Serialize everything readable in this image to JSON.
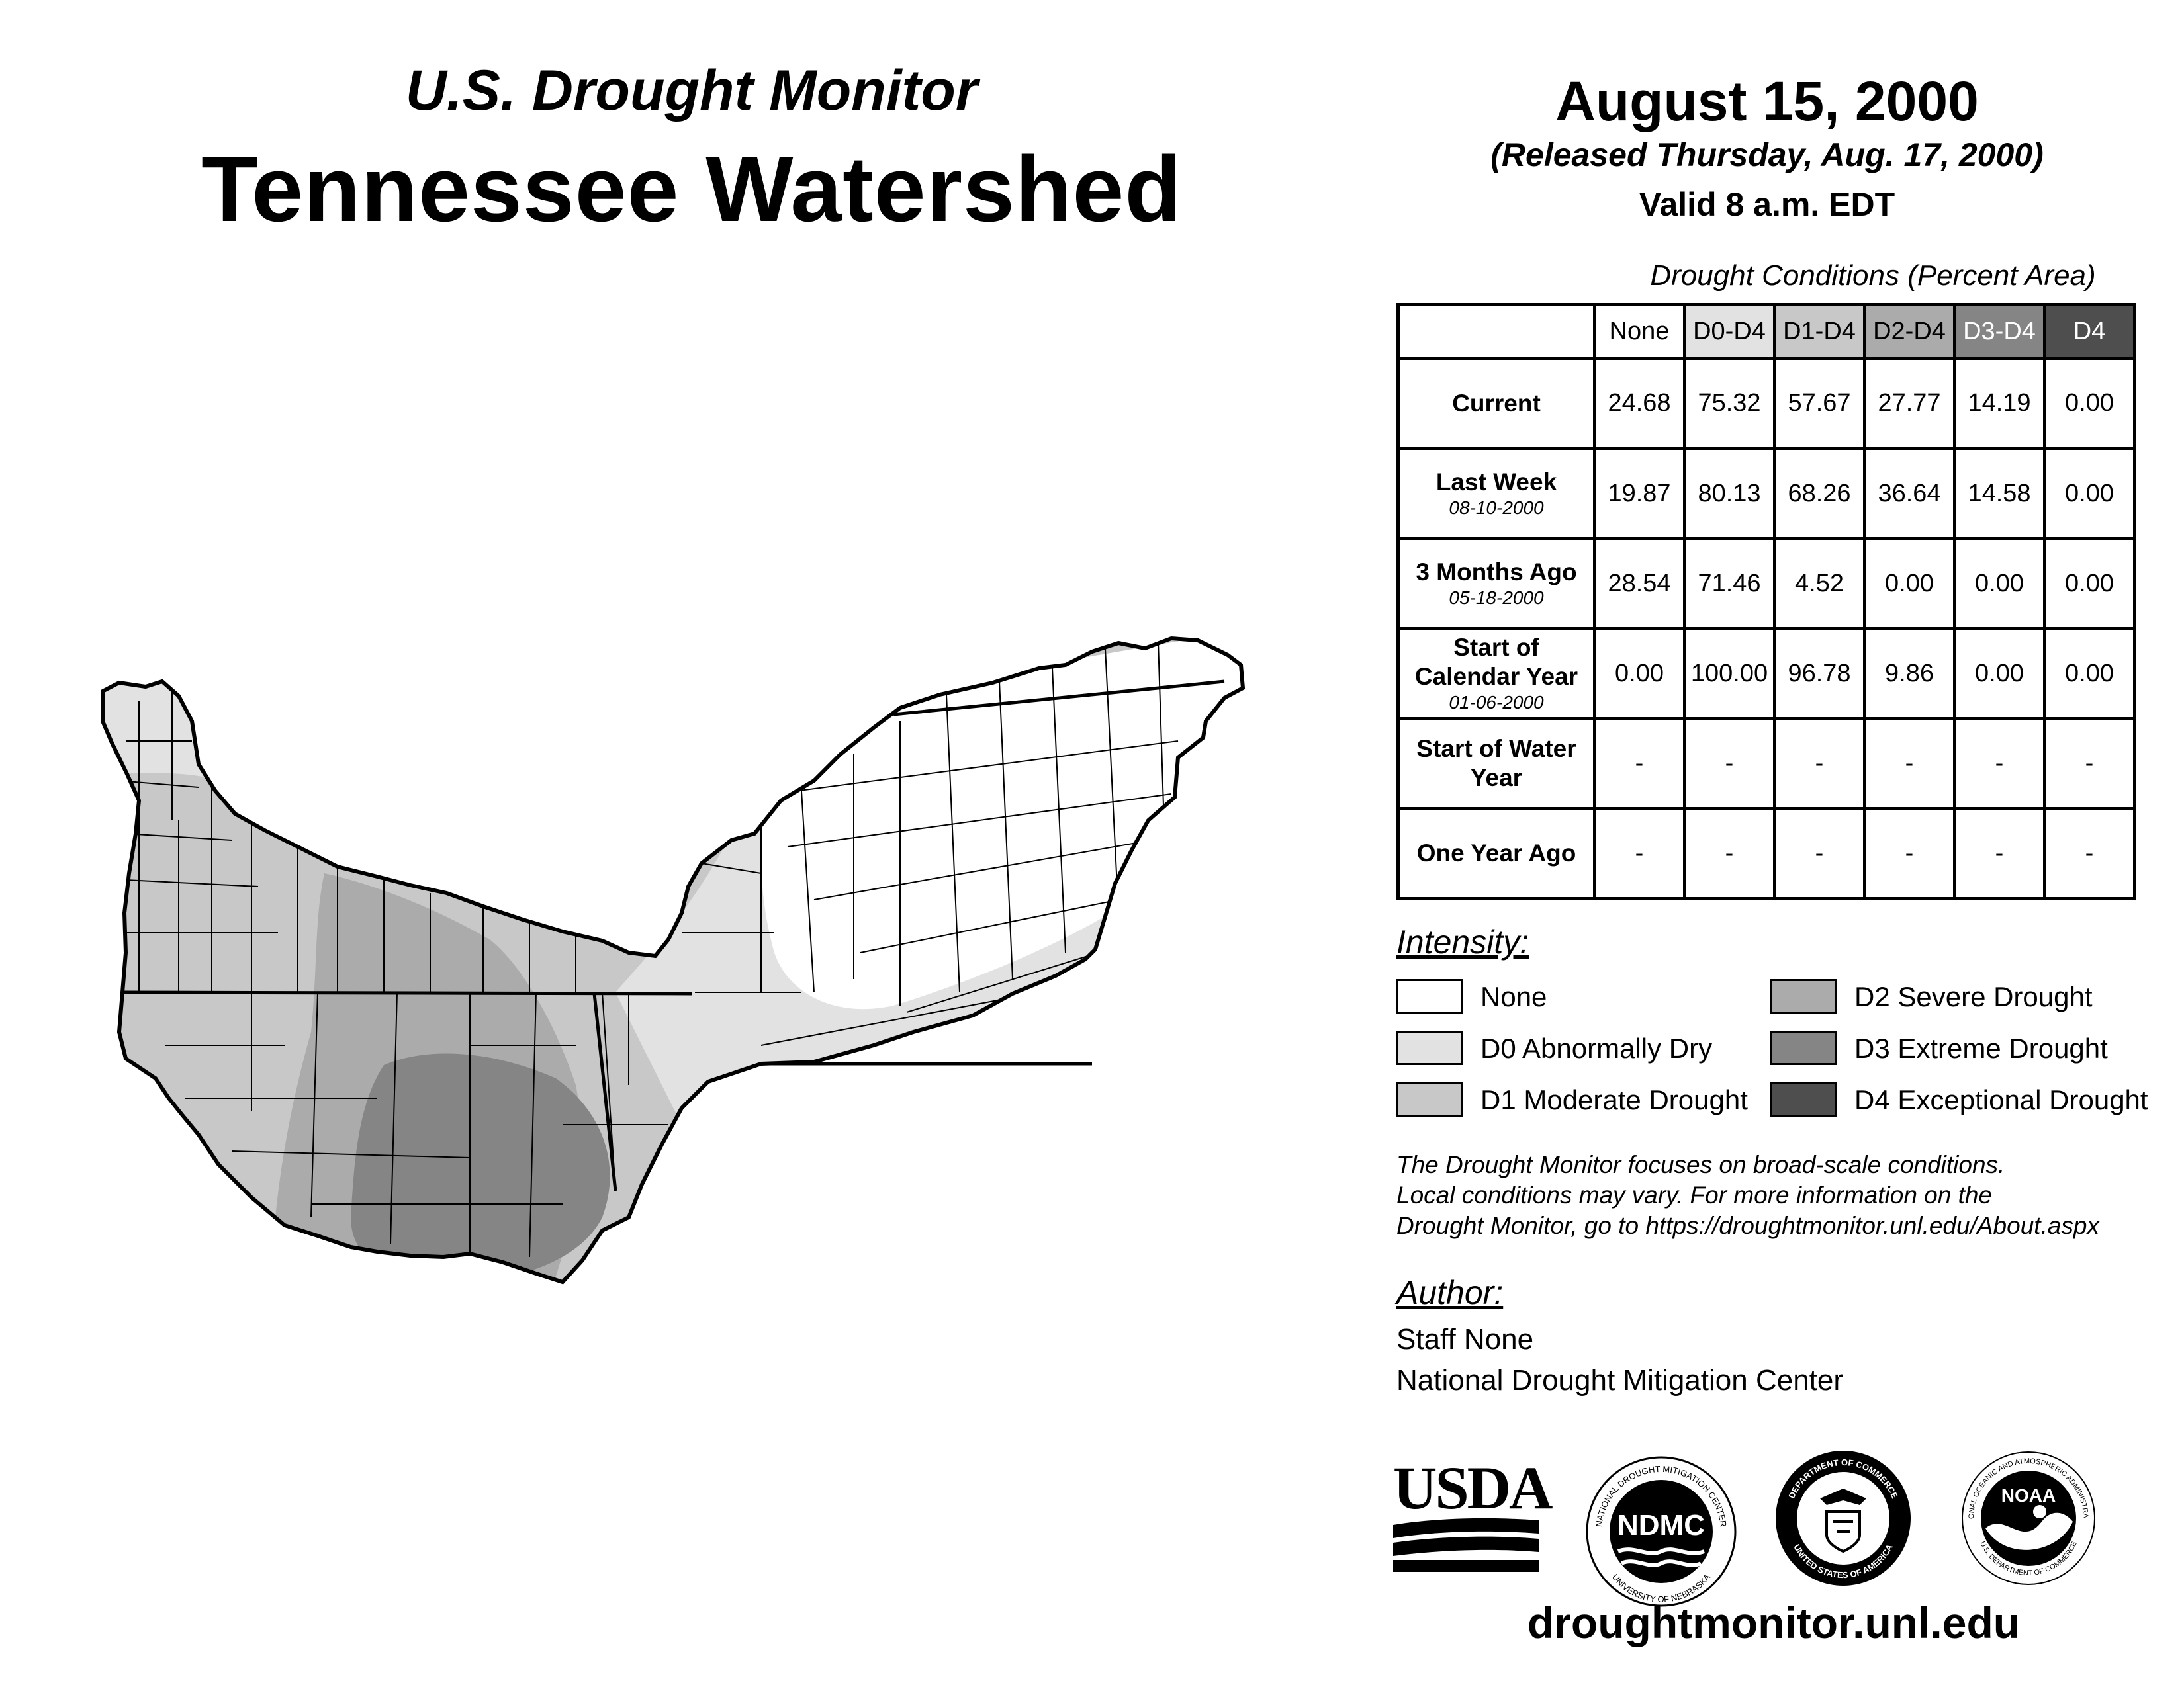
{
  "header": {
    "subtitle": "U.S. Drought Monitor",
    "title": "Tennessee Watershed",
    "date": "August 15, 2000",
    "released": "(Released Thursday, Aug. 17, 2000)",
    "valid": "Valid 8 a.m. EDT"
  },
  "table": {
    "caption": "Drought Conditions (Percent Area)",
    "columns": [
      "None",
      "D0-D4",
      "D1-D4",
      "D2-D4",
      "D3-D4",
      "D4"
    ],
    "rows": [
      {
        "label": "Current",
        "date": "",
        "values": [
          "24.68",
          "75.32",
          "57.67",
          "27.77",
          "14.19",
          "0.00"
        ]
      },
      {
        "label": "Last Week",
        "date": "08-10-2000",
        "values": [
          "19.87",
          "80.13",
          "68.26",
          "36.64",
          "14.58",
          "0.00"
        ]
      },
      {
        "label": "3 Months Ago",
        "date": "05-18-2000",
        "values": [
          "28.54",
          "71.46",
          "4.52",
          "0.00",
          "0.00",
          "0.00"
        ]
      },
      {
        "label": "Start of Calendar Year",
        "date": "01-06-2000",
        "values": [
          "0.00",
          "100.00",
          "96.78",
          "9.86",
          "0.00",
          "0.00"
        ]
      },
      {
        "label": "Start of Water Year",
        "date": "",
        "values": [
          "-",
          "-",
          "-",
          "-",
          "-",
          "-"
        ]
      },
      {
        "label": "One Year Ago",
        "date": "",
        "values": [
          "-",
          "-",
          "-",
          "-",
          "-",
          "-"
        ]
      }
    ]
  },
  "legend": {
    "title": "Intensity:",
    "items": [
      {
        "label": "None",
        "color": "#ffffff"
      },
      {
        "label": "D0 Abnormally Dry",
        "color": "#e2e2e2"
      },
      {
        "label": "D1 Moderate Drought",
        "color": "#c8c8c8"
      },
      {
        "label": "D2 Severe Drought",
        "color": "#ababab"
      },
      {
        "label": "D3 Extreme Drought",
        "color": "#858585"
      },
      {
        "label": "D4 Exceptional Drought",
        "color": "#4e4e4e"
      }
    ]
  },
  "notes": {
    "line1": "The Drought Monitor focuses on broad-scale conditions.",
    "line2": "Local conditions may vary. For more information on the",
    "line3": "Drought Monitor, go to https://droughtmonitor.unl.edu/About.aspx"
  },
  "author": {
    "title": "Author:",
    "name": "Staff None",
    "org": "National Drought Mitigation Center"
  },
  "logos": {
    "usda": "USDA",
    "ndmc": "NDMC",
    "ndmc_ring_top": "NATIONAL DROUGHT MITIGATION CENTER",
    "ndmc_ring_bottom": "UNIVERSITY OF NEBRASKA",
    "doc_ring_top": "DEPARTMENT OF COMMERCE",
    "doc_ring_bottom": "UNITED STATES OF AMERICA",
    "noaa": "NOAA",
    "noaa_ring_top": "NATIONAL OCEANIC AND ATMOSPHERIC ADMINISTRATION",
    "noaa_ring_bottom": "U.S. DEPARTMENT OF COMMERCE"
  },
  "url": "droughtmonitor.unl.edu"
}
